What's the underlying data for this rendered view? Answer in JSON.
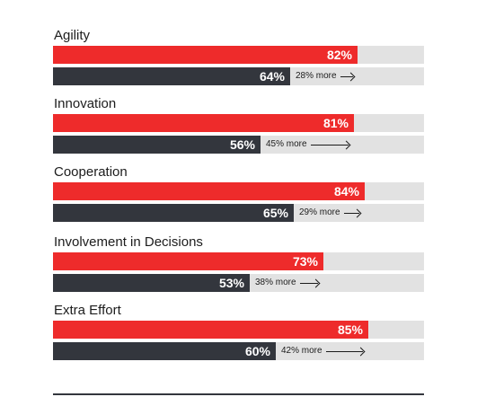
{
  "chart_data": {
    "type": "bar",
    "orientation": "horizontal",
    "xlim": [
      0,
      100
    ],
    "categories": [
      "Agility",
      "Innovation",
      "Cooperation",
      "Involvement in Decisions",
      "Extra Effort"
    ],
    "series": [
      {
        "values": [
          82,
          81,
          84,
          73,
          85
        ],
        "value_labels": [
          "82%",
          "81%",
          "84%",
          "73%",
          "85%"
        ],
        "color": "#ee2b2b"
      },
      {
        "values": [
          64,
          56,
          65,
          53,
          60
        ],
        "value_labels": [
          "64%",
          "56%",
          "65%",
          "53%",
          "60%"
        ],
        "color": "#33363d"
      }
    ],
    "annotations": [
      "28% more",
      "45% more",
      "29% more",
      "38% more",
      "42% more"
    ],
    "grid": false,
    "legend": "none"
  },
  "colors": {
    "track": "#e2e2e2",
    "text": "#1c1c1c"
  }
}
